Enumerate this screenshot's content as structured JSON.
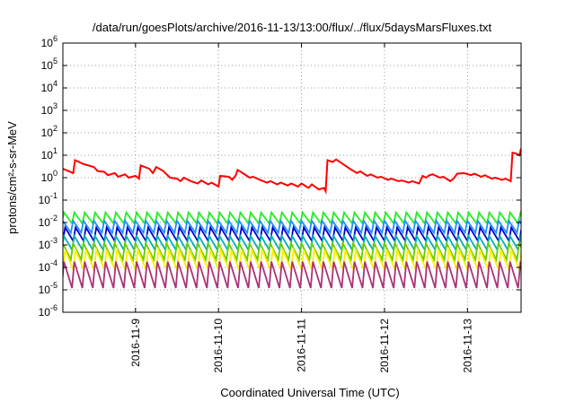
{
  "chart_data": {
    "type": "line",
    "title": "/data/run/goesPlots/archive/2016-11-13/13:00/flux/../flux/5daysMarsFluxes.txt",
    "xlabel": "Coordinated Universal Time (UTC)",
    "ylabel": "protons/cm²-s-sr-MeV",
    "y_scale": "log",
    "ylim_exponents": [
      -6,
      6
    ],
    "y_tick_base": "10",
    "y_tick_exponents": [
      "-6",
      "-5",
      "-4",
      "-3",
      "-2",
      "-1",
      "0",
      "1",
      "2",
      "3",
      "4",
      "5",
      "6"
    ],
    "xlim": [
      "2016-11-08 03:00",
      "2016-11-13 15:30"
    ],
    "x_ticks": [
      "2016-11-9",
      "2016-11-10",
      "2016-11-11",
      "2016-11-12",
      "2016-11-13"
    ],
    "grid": true,
    "legend": "none",
    "sawtooth": {
      "x_start": "2016-11-08 03:00",
      "x_end": "2016-11-13 15:30",
      "period_hours": 3,
      "resets_per_cycle": 1
    },
    "series": [
      {
        "color": "#ff0000",
        "points": [
          [
            "2016-11-08 03:00",
            2.5
          ],
          [
            "2016-11-08 06:00",
            1.6
          ],
          [
            "2016-11-08 06:30",
            6.0
          ],
          [
            "2016-11-08 09:00",
            4.0
          ],
          [
            "2016-11-08 12:00",
            3.0
          ],
          [
            "2016-11-08 13:00",
            2.0
          ],
          [
            "2016-11-08 15:00",
            1.8
          ],
          [
            "2016-11-08 16:00",
            1.3
          ],
          [
            "2016-11-08 18:00",
            1.6
          ],
          [
            "2016-11-08 19:00",
            1.1
          ],
          [
            "2016-11-08 21:00",
            1.4
          ],
          [
            "2016-11-08 22:00",
            1.0
          ],
          [
            "2016-11-09 00:00",
            1.2
          ],
          [
            "2016-11-09 01:00",
            0.9
          ],
          [
            "2016-11-09 01:30",
            3.5
          ],
          [
            "2016-11-09 04:00",
            2.5
          ],
          [
            "2016-11-09 05:00",
            1.6
          ],
          [
            "2016-11-09 06:00",
            3.0
          ],
          [
            "2016-11-09 08:00",
            2.0
          ],
          [
            "2016-11-09 10:00",
            1.0
          ],
          [
            "2016-11-09 12:00",
            0.9
          ],
          [
            "2016-11-09 13:00",
            0.7
          ],
          [
            "2016-11-09 14:00",
            1.0
          ],
          [
            "2016-11-09 16:00",
            0.7
          ],
          [
            "2016-11-09 18:00",
            0.55
          ],
          [
            "2016-11-09 19:00",
            0.75
          ],
          [
            "2016-11-09 21:00",
            0.5
          ],
          [
            "2016-11-09 22:00",
            0.6
          ],
          [
            "2016-11-10 00:00",
            0.4
          ],
          [
            "2016-11-10 00:30",
            1.2
          ],
          [
            "2016-11-10 03:00",
            1.1
          ],
          [
            "2016-11-10 04:00",
            0.8
          ],
          [
            "2016-11-10 05:00",
            1.3
          ],
          [
            "2016-11-10 05:30",
            2.2
          ],
          [
            "2016-11-10 07:00",
            1.6
          ],
          [
            "2016-11-10 09:00",
            1.0
          ],
          [
            "2016-11-10 10:00",
            1.1
          ],
          [
            "2016-11-10 12:00",
            0.8
          ],
          [
            "2016-11-10 14:00",
            0.6
          ],
          [
            "2016-11-10 15:00",
            0.7
          ],
          [
            "2016-11-10 17:00",
            0.5
          ],
          [
            "2016-11-10 18:00",
            0.6
          ],
          [
            "2016-11-10 20:00",
            0.45
          ],
          [
            "2016-11-10 21:00",
            0.55
          ],
          [
            "2016-11-10 23:00",
            0.4
          ],
          [
            "2016-11-11 00:00",
            0.55
          ],
          [
            "2016-11-11 02:00",
            0.35
          ],
          [
            "2016-11-11 03:00",
            0.5
          ],
          [
            "2016-11-11 05:00",
            0.3
          ],
          [
            "2016-11-11 06:30",
            0.35
          ],
          [
            "2016-11-11 07:00",
            0.25
          ],
          [
            "2016-11-11 07:30",
            6.0
          ],
          [
            "2016-11-11 09:00",
            5.0
          ],
          [
            "2016-11-11 10:00",
            6.5
          ],
          [
            "2016-11-11 12:00",
            4.0
          ],
          [
            "2016-11-11 14:00",
            2.5
          ],
          [
            "2016-11-11 16:00",
            1.6
          ],
          [
            "2016-11-11 17:00",
            1.9
          ],
          [
            "2016-11-11 19:00",
            1.2
          ],
          [
            "2016-11-11 20:00",
            1.4
          ],
          [
            "2016-11-11 22:00",
            1.0
          ],
          [
            "2016-11-11 23:00",
            1.1
          ],
          [
            "2016-11-12 01:00",
            0.8
          ],
          [
            "2016-11-12 02:00",
            0.9
          ],
          [
            "2016-11-12 04:00",
            0.7
          ],
          [
            "2016-11-12 05:00",
            0.75
          ],
          [
            "2016-11-12 07:00",
            0.6
          ],
          [
            "2016-11-12 08:00",
            0.7
          ],
          [
            "2016-11-12 10:00",
            0.55
          ],
          [
            "2016-11-12 11:00",
            1.2
          ],
          [
            "2016-11-12 12:00",
            1.0
          ],
          [
            "2016-11-12 13:00",
            1.3
          ],
          [
            "2016-11-12 14:00",
            1.4
          ],
          [
            "2016-11-12 16:00",
            1.0
          ],
          [
            "2016-11-12 17:00",
            1.1
          ],
          [
            "2016-11-12 19:00",
            0.7
          ],
          [
            "2016-11-12 20:00",
            0.9
          ],
          [
            "2016-11-12 21:00",
            1.5
          ],
          [
            "2016-11-12 23:00",
            1.6
          ],
          [
            "2016-11-13 01:00",
            1.3
          ],
          [
            "2016-11-13 02:00",
            1.5
          ],
          [
            "2016-11-13 04:00",
            1.1
          ],
          [
            "2016-11-13 05:00",
            1.3
          ],
          [
            "2016-11-13 07:00",
            0.9
          ],
          [
            "2016-11-13 08:00",
            1.0
          ],
          [
            "2016-11-13 10:00",
            0.8
          ],
          [
            "2016-11-13 11:00",
            0.9
          ],
          [
            "2016-11-13 12:30",
            0.7
          ],
          [
            "2016-11-13 13:00",
            13.0
          ],
          [
            "2016-11-13 14:00",
            12.0
          ],
          [
            "2016-11-13 15:00",
            10.0
          ],
          [
            "2016-11-13 15:30",
            20.0
          ]
        ]
      },
      {
        "color": "#22ee22",
        "sawtooth_peak": 0.028,
        "sawtooth_trough": 0.009
      },
      {
        "color": "#1e90ff",
        "sawtooth_peak": 0.012,
        "sawtooth_trough": 0.0035
      },
      {
        "color": "#0000cd",
        "sawtooth_peak": 0.006,
        "sawtooth_trough": 0.0015
      },
      {
        "color": "#00b2b2",
        "sawtooth_peak": 0.0025,
        "sawtooth_trough": 0.0006
      },
      {
        "color": "#66cc00",
        "sawtooth_peak": 0.0012,
        "sawtooth_trough": 0.00022
      },
      {
        "color": "#ffee00",
        "sawtooth_peak": 0.0006,
        "sawtooth_trough": 8e-05
      },
      {
        "color": "#aa3377",
        "sawtooth_peak": 0.00018,
        "sawtooth_trough": 1.2e-05
      }
    ]
  }
}
